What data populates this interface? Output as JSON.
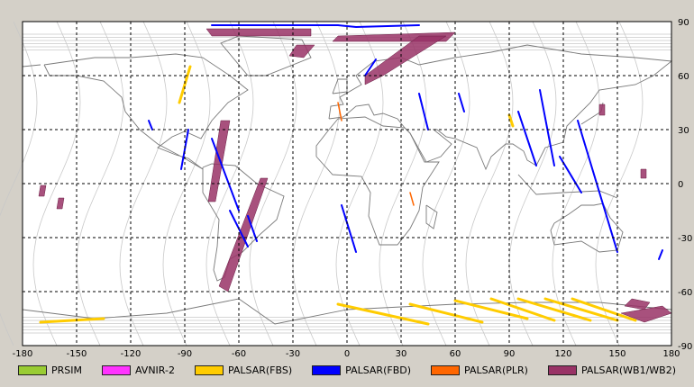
{
  "map": {
    "lon_ticks": [
      "-180",
      "-150",
      "-120",
      "-90",
      "-60",
      "-30",
      "0",
      "30",
      "60",
      "90",
      "120",
      "150",
      "180"
    ],
    "lat_ticks": [
      "90",
      "60",
      "30",
      "0",
      "-30",
      "-60",
      "-90"
    ],
    "lon_range": [
      -180,
      180
    ],
    "lat_range": [
      -90,
      90
    ],
    "grid": "dashed",
    "land_outline_color": "#7a7a7a",
    "orbit_track_color": "#c8c8c8"
  },
  "legend": [
    {
      "label": "PRSIM",
      "color": "#99cc33"
    },
    {
      "label": "AVNIR-2",
      "color": "#ff33ff"
    },
    {
      "label": "PALSAR(FBS)",
      "color": "#ffcc00"
    },
    {
      "label": "PALSAR(FBD)",
      "color": "#0000ff"
    },
    {
      "label": "PALSAR(PLR)",
      "color": "#ff6600"
    },
    {
      "label": "PALSAR(WB1/WB2)",
      "color": "#993366"
    }
  ],
  "swaths": {
    "wb": [
      {
        "pts": [
          [
            -70,
            35
          ],
          [
            -65,
            35
          ],
          [
            -73,
            -10
          ],
          [
            -77,
            -10
          ]
        ]
      },
      {
        "pts": [
          [
            -48,
            3
          ],
          [
            -44,
            3
          ],
          [
            -66,
            -60
          ],
          [
            -71,
            -57
          ]
        ]
      },
      {
        "pts": [
          [
            -78,
            86
          ],
          [
            -20,
            86
          ],
          [
            -20,
            82
          ],
          [
            -75,
            82
          ]
        ]
      },
      {
        "pts": [
          [
            -5,
            82
          ],
          [
            60,
            84
          ],
          [
            55,
            79
          ],
          [
            -8,
            79
          ]
        ]
      },
      {
        "pts": [
          [
            40,
            82
          ],
          [
            55,
            82
          ],
          [
            20,
            60
          ],
          [
            10,
            55
          ],
          [
            10,
            60
          ]
        ]
      },
      {
        "pts": [
          [
            -28,
            77
          ],
          [
            -18,
            77
          ],
          [
            -24,
            70
          ],
          [
            -32,
            71
          ]
        ]
      },
      {
        "pts": [
          [
            -170,
            -1
          ],
          [
            -167,
            -1
          ],
          [
            -168,
            -7
          ],
          [
            -171,
            -7
          ]
        ]
      },
      {
        "pts": [
          [
            -160,
            -8
          ],
          [
            -157,
            -8
          ],
          [
            -158,
            -14
          ],
          [
            -161,
            -14
          ]
        ]
      },
      {
        "pts": [
          [
            140,
            44
          ],
          [
            143,
            44
          ],
          [
            143,
            38
          ],
          [
            140,
            38
          ]
        ]
      },
      {
        "pts": [
          [
            163,
            8
          ],
          [
            166,
            8
          ],
          [
            166,
            3
          ],
          [
            163,
            3
          ]
        ]
      },
      {
        "pts": [
          [
            158,
            -64
          ],
          [
            168,
            -66
          ],
          [
            165,
            -70
          ],
          [
            154,
            -68
          ]
        ]
      },
      {
        "pts": [
          [
            152,
            -72
          ],
          [
            175,
            -68
          ],
          [
            180,
            -72
          ],
          [
            165,
            -77
          ]
        ]
      }
    ],
    "fbd": [
      [
        [
          -75,
          88
        ],
        [
          -5,
          88
        ],
        [
          5,
          87
        ],
        [
          40,
          88
        ]
      ],
      [
        [
          16,
          69
        ],
        [
          10,
          60
        ]
      ],
      [
        [
          40,
          50
        ],
        [
          45,
          30
        ]
      ],
      [
        [
          62,
          50
        ],
        [
          65,
          40
        ]
      ],
      [
        [
          107,
          52
        ],
        [
          115,
          10
        ]
      ],
      [
        [
          128,
          35
        ],
        [
          150,
          -38
        ]
      ],
      [
        [
          -88,
          30
        ],
        [
          -92,
          8
        ]
      ],
      [
        [
          -75,
          25
        ],
        [
          -60,
          -15
        ]
      ],
      [
        [
          -65,
          -15
        ],
        [
          -55,
          -35
        ]
      ],
      [
        [
          -3,
          -12
        ],
        [
          5,
          -38
        ]
      ],
      [
        [
          -55,
          -18
        ],
        [
          -50,
          -32
        ]
      ],
      [
        [
          95,
          40
        ],
        [
          105,
          10
        ]
      ],
      [
        [
          118,
          15
        ],
        [
          130,
          -5
        ]
      ],
      [
        [
          175,
          -37
        ],
        [
          173,
          -42
        ]
      ],
      [
        [
          -110,
          35
        ],
        [
          -108,
          30
        ]
      ]
    ],
    "fbs": [
      [
        [
          -87,
          65
        ],
        [
          -93,
          45
        ]
      ],
      [
        [
          90,
          38
        ],
        [
          92,
          32
        ]
      ],
      [
        [
          -170,
          -77
        ],
        [
          -135,
          -75
        ]
      ],
      [
        [
          -5,
          -67
        ],
        [
          45,
          -78
        ]
      ],
      [
        [
          35,
          -67
        ],
        [
          75,
          -77
        ]
      ],
      [
        [
          60,
          -65
        ],
        [
          100,
          -75
        ]
      ],
      [
        [
          80,
          -64
        ],
        [
          115,
          -76
        ]
      ],
      [
        [
          95,
          -64
        ],
        [
          135,
          -76
        ]
      ],
      [
        [
          110,
          -64
        ],
        [
          150,
          -76
        ]
      ],
      [
        [
          125,
          -64
        ],
        [
          160,
          -76
        ]
      ]
    ],
    "plr": [
      [
        [
          -5,
          45
        ],
        [
          -3,
          35
        ]
      ],
      [
        [
          35,
          -5
        ],
        [
          37,
          -12
        ]
      ]
    ]
  }
}
